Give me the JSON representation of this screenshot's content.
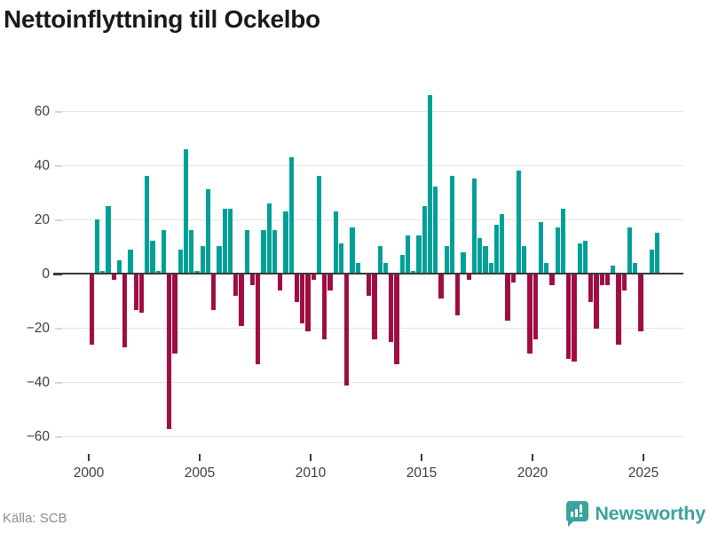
{
  "title": "Nettoinflyttning till Ockelbo",
  "source": "Källa: SCB",
  "logo": {
    "text": "Newsworthy"
  },
  "colors": {
    "positive_bar": "#00A096",
    "negative_bar": "#A00D43",
    "zero_line": "#3a3a3a",
    "gridline": "#e4e4e4",
    "axis_text": "#3d3d3d",
    "title_text": "#1a1a1a",
    "source_text": "#8c8c8c",
    "logo_teal": "#3AA39D"
  },
  "y_axis": {
    "ticks": [
      60,
      40,
      20,
      0,
      -20,
      -40,
      -60
    ],
    "labels": [
      "60",
      "40",
      "20",
      "0",
      "−20",
      "−40",
      "−60"
    ]
  },
  "x_axis": {
    "ticks": [
      2000,
      2005,
      2010,
      2015,
      2020,
      2025
    ],
    "labels": [
      "2000",
      "2005",
      "2010",
      "2015",
      "2020",
      "2025"
    ]
  },
  "chart_data": {
    "type": "bar",
    "title": "Nettoinflyttning till Ockelbo",
    "frequency": "quarterly",
    "start": "2000Q1",
    "end": "2025Q3",
    "ylim": [
      -60,
      66
    ],
    "grid": "horizontal",
    "series_name": "Nettoinflyttning",
    "points": [
      [
        "2000Q1",
        -26
      ],
      [
        "2000Q2",
        20
      ],
      [
        "2000Q3",
        1
      ],
      [
        "2000Q4",
        25
      ],
      [
        "2001Q1",
        -2
      ],
      [
        "2001Q2",
        5
      ],
      [
        "2001Q3",
        -27
      ],
      [
        "2001Q4",
        9
      ],
      [
        "2002Q1",
        -13
      ],
      [
        "2002Q2",
        -14
      ],
      [
        "2002Q3",
        36
      ],
      [
        "2002Q4",
        12
      ],
      [
        "2003Q1",
        1
      ],
      [
        "2003Q2",
        16
      ],
      [
        "2003Q3",
        -57
      ],
      [
        "2003Q4",
        -29
      ],
      [
        "2004Q1",
        9
      ],
      [
        "2004Q2",
        46
      ],
      [
        "2004Q3",
        16
      ],
      [
        "2004Q4",
        1
      ],
      [
        "2005Q1",
        10
      ],
      [
        "2005Q2",
        31
      ],
      [
        "2005Q3",
        -13
      ],
      [
        "2005Q4",
        10
      ],
      [
        "2006Q1",
        24
      ],
      [
        "2006Q2",
        24
      ],
      [
        "2006Q3",
        -8
      ],
      [
        "2006Q4",
        -19
      ],
      [
        "2007Q1",
        16
      ],
      [
        "2007Q2",
        -4
      ],
      [
        "2007Q3",
        -33
      ],
      [
        "2007Q4",
        16
      ],
      [
        "2008Q1",
        26
      ],
      [
        "2008Q2",
        16
      ],
      [
        "2008Q3",
        -6
      ],
      [
        "2008Q4",
        23
      ],
      [
        "2009Q1",
        43
      ],
      [
        "2009Q2",
        -10
      ],
      [
        "2009Q3",
        -18
      ],
      [
        "2009Q4",
        -21
      ],
      [
        "2010Q1",
        -2
      ],
      [
        "2010Q2",
        36
      ],
      [
        "2010Q3",
        -24
      ],
      [
        "2010Q4",
        -6
      ],
      [
        "2011Q1",
        23
      ],
      [
        "2011Q2",
        11
      ],
      [
        "2011Q3",
        -41
      ],
      [
        "2011Q4",
        17
      ],
      [
        "2012Q1",
        4
      ],
      [
        "2012Q2",
        0
      ],
      [
        "2012Q3",
        -8
      ],
      [
        "2012Q4",
        -24
      ],
      [
        "2013Q1",
        10
      ],
      [
        "2013Q2",
        4
      ],
      [
        "2013Q3",
        -25
      ],
      [
        "2013Q4",
        -33
      ],
      [
        "2014Q1",
        7
      ],
      [
        "2014Q2",
        14
      ],
      [
        "2014Q3",
        1
      ],
      [
        "2014Q4",
        14
      ],
      [
        "2015Q1",
        25
      ],
      [
        "2015Q2",
        66
      ],
      [
        "2015Q3",
        32
      ],
      [
        "2015Q4",
        -9
      ],
      [
        "2016Q1",
        10
      ],
      [
        "2016Q2",
        36
      ],
      [
        "2016Q3",
        -15
      ],
      [
        "2016Q4",
        8
      ],
      [
        "2017Q1",
        -2
      ],
      [
        "2017Q2",
        35
      ],
      [
        "2017Q3",
        13
      ],
      [
        "2017Q4",
        10
      ],
      [
        "2018Q1",
        4
      ],
      [
        "2018Q2",
        18
      ],
      [
        "2018Q3",
        22
      ],
      [
        "2018Q4",
        -17
      ],
      [
        "2019Q1",
        -3
      ],
      [
        "2019Q2",
        38
      ],
      [
        "2019Q3",
        10
      ],
      [
        "2019Q4",
        -29
      ],
      [
        "2020Q1",
        -24
      ],
      [
        "2020Q2",
        19
      ],
      [
        "2020Q3",
        4
      ],
      [
        "2020Q4",
        -4
      ],
      [
        "2021Q1",
        17
      ],
      [
        "2021Q2",
        24
      ],
      [
        "2021Q3",
        -31
      ],
      [
        "2021Q4",
        -32
      ],
      [
        "2022Q1",
        11
      ],
      [
        "2022Q2",
        12
      ],
      [
        "2022Q3",
        -10
      ],
      [
        "2022Q4",
        -20
      ],
      [
        "2023Q1",
        -4
      ],
      [
        "2023Q2",
        -4
      ],
      [
        "2023Q3",
        3
      ],
      [
        "2023Q4",
        -26
      ],
      [
        "2024Q1",
        -6
      ],
      [
        "2024Q2",
        17
      ],
      [
        "2024Q3",
        4
      ],
      [
        "2024Q4",
        -21
      ],
      [
        "2025Q1",
        0
      ],
      [
        "2025Q2",
        9
      ],
      [
        "2025Q3",
        15
      ]
    ]
  }
}
